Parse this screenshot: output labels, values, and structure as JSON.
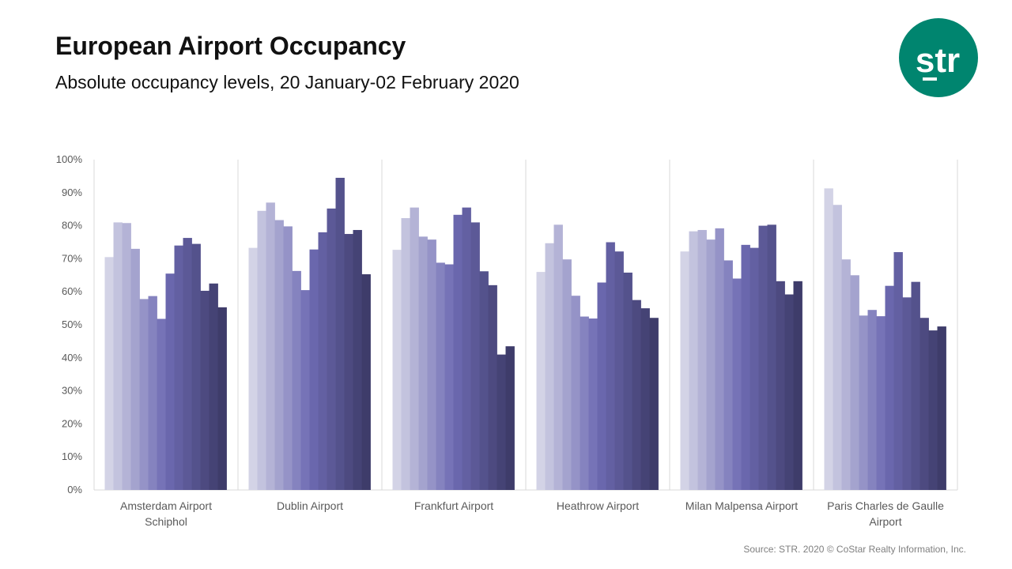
{
  "header": {
    "title": "European Airport Occupancy",
    "subtitle": "Absolute occupancy levels, 20 January-02 February 2020"
  },
  "logo": {
    "text": "str",
    "color": "#00856f"
  },
  "source": "Source: STR. 2020 © CoStar Realty Information, Inc.",
  "colors": {
    "bar_start": "#d3d3e6",
    "bar_mid": "#6e6bb3",
    "bar_end": "#3e3c6a",
    "gridline": "#d9d9d9",
    "axis_text": "#595959"
  },
  "chart_data": {
    "type": "bar",
    "ylabel": "",
    "xlabel": "",
    "ylim": [
      0,
      100
    ],
    "yticks": [
      "0%",
      "10%",
      "20%",
      "30%",
      "40%",
      "50%",
      "60%",
      "70%",
      "80%",
      "90%",
      "100%"
    ],
    "bars_per_group": 14,
    "legend": "none",
    "grid": "vertical separators only",
    "categories": [
      [
        "Amsterdam Airport",
        "Schiphol"
      ],
      [
        "Dublin Airport"
      ],
      [
        "Frankfurt Airport"
      ],
      [
        "Heathrow Airport"
      ],
      [
        "Milan Malpensa Airport"
      ],
      [
        "Paris Charles de Gaulle",
        "Airport"
      ]
    ],
    "values": [
      [
        70.5,
        81,
        80.8,
        73,
        57.8,
        58.7,
        51.8,
        65.5,
        74,
        76.3,
        74.5,
        60.3,
        62.5,
        55.3
      ],
      [
        73.3,
        84.5,
        87,
        81.7,
        79.8,
        66.3,
        60.5,
        72.8,
        78,
        85.2,
        94.5,
        77.5,
        78.7,
        65.3
      ],
      [
        72.7,
        82.3,
        85.5,
        76.7,
        75.8,
        68.8,
        68.3,
        83.3,
        85.5,
        81,
        66.2,
        62,
        41,
        43.5
      ],
      [
        66,
        74.7,
        80.3,
        69.8,
        58.8,
        52.5,
        51.9,
        62.8,
        75,
        72.2,
        65.8,
        57.5,
        55,
        52.1
      ],
      [
        72.2,
        78.3,
        78.7,
        75.8,
        79.2,
        69.5,
        64,
        74.2,
        73.3,
        80,
        80.3,
        63.2,
        59.2,
        63.2
      ],
      [
        91.3,
        86.3,
        69.8,
        65,
        52.8,
        54.5,
        52.6,
        61.8,
        72,
        58.3,
        63,
        52.1,
        48.3,
        49.5
      ]
    ]
  }
}
